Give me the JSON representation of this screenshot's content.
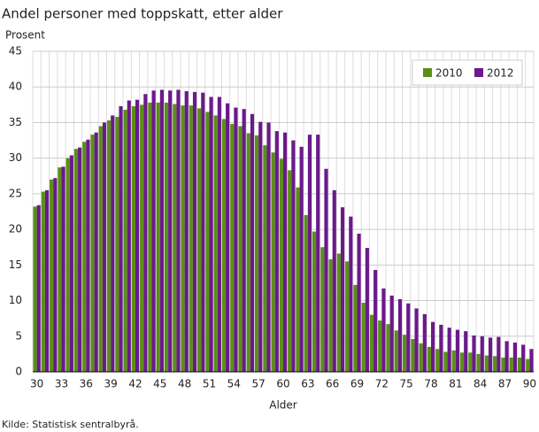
{
  "chart_data": {
    "type": "bar",
    "title": "Andel personer med toppskatt, etter alder",
    "y_label": "Prosent",
    "x_label": "Alder",
    "source": "Kilde: Statistisk sentralbyrå.",
    "categories": [
      "30",
      null,
      null,
      "33",
      null,
      null,
      "36",
      null,
      null,
      "39",
      null,
      null,
      "42",
      null,
      null,
      "45",
      null,
      null,
      "48",
      null,
      null,
      "51",
      null,
      null,
      "54",
      null,
      null,
      "57",
      null,
      null,
      "60",
      null,
      null,
      "63",
      null,
      null,
      "66",
      null,
      null,
      "69",
      null,
      null,
      "72",
      null,
      null,
      "75",
      null,
      null,
      "78",
      null,
      null,
      "81",
      null,
      null,
      "84",
      null,
      null,
      "87",
      null,
      null,
      "90"
    ],
    "series": [
      {
        "name": "2010",
        "color": "#5a8f16",
        "values": [
          23.2,
          25.3,
          27.0,
          28.7,
          30.0,
          31.3,
          32.3,
          33.3,
          34.5,
          35.3,
          35.8,
          36.8,
          37.3,
          37.5,
          37.8,
          37.8,
          37.8,
          37.6,
          37.4,
          37.4,
          37.0,
          36.5,
          36.0,
          35.5,
          34.8,
          34.5,
          33.5,
          33.2,
          31.8,
          30.8,
          29.9,
          28.3,
          25.9,
          22.0,
          19.7,
          17.5,
          15.8,
          16.6,
          15.5,
          12.2,
          9.7,
          8.0,
          7.2,
          6.7,
          5.8,
          5.2,
          4.6,
          4.0,
          3.5,
          3.2,
          2.8,
          3.0,
          2.7,
          2.7,
          2.5,
          2.3,
          2.2,
          2.0,
          2.0,
          2.0,
          1.8
        ]
      },
      {
        "name": "2012",
        "color": "#6a1a8a",
        "values": [
          23.4,
          25.5,
          27.2,
          28.8,
          30.4,
          31.5,
          32.6,
          33.6,
          35.0,
          36.0,
          37.3,
          38.1,
          38.2,
          39.0,
          39.5,
          39.6,
          39.5,
          39.6,
          39.4,
          39.3,
          39.2,
          38.6,
          38.6,
          37.7,
          37.1,
          36.9,
          36.2,
          35.1,
          35.0,
          33.8,
          33.6,
          32.5,
          31.6,
          33.3,
          33.3,
          28.5,
          25.5,
          23.1,
          21.8,
          19.4,
          17.4,
          14.3,
          11.7,
          10.7,
          10.2,
          9.6,
          8.9,
          8.1,
          7.0,
          6.6,
          6.2,
          5.9,
          5.7,
          5.1,
          5.0,
          4.8,
          4.9,
          4.3,
          4.1,
          3.8,
          3.2
        ]
      }
    ],
    "ylim": [
      0,
      45
    ],
    "yticks": [
      0,
      5,
      10,
      15,
      20,
      25,
      30,
      35,
      40,
      45
    ],
    "grid": true,
    "legend": "top-right"
  }
}
